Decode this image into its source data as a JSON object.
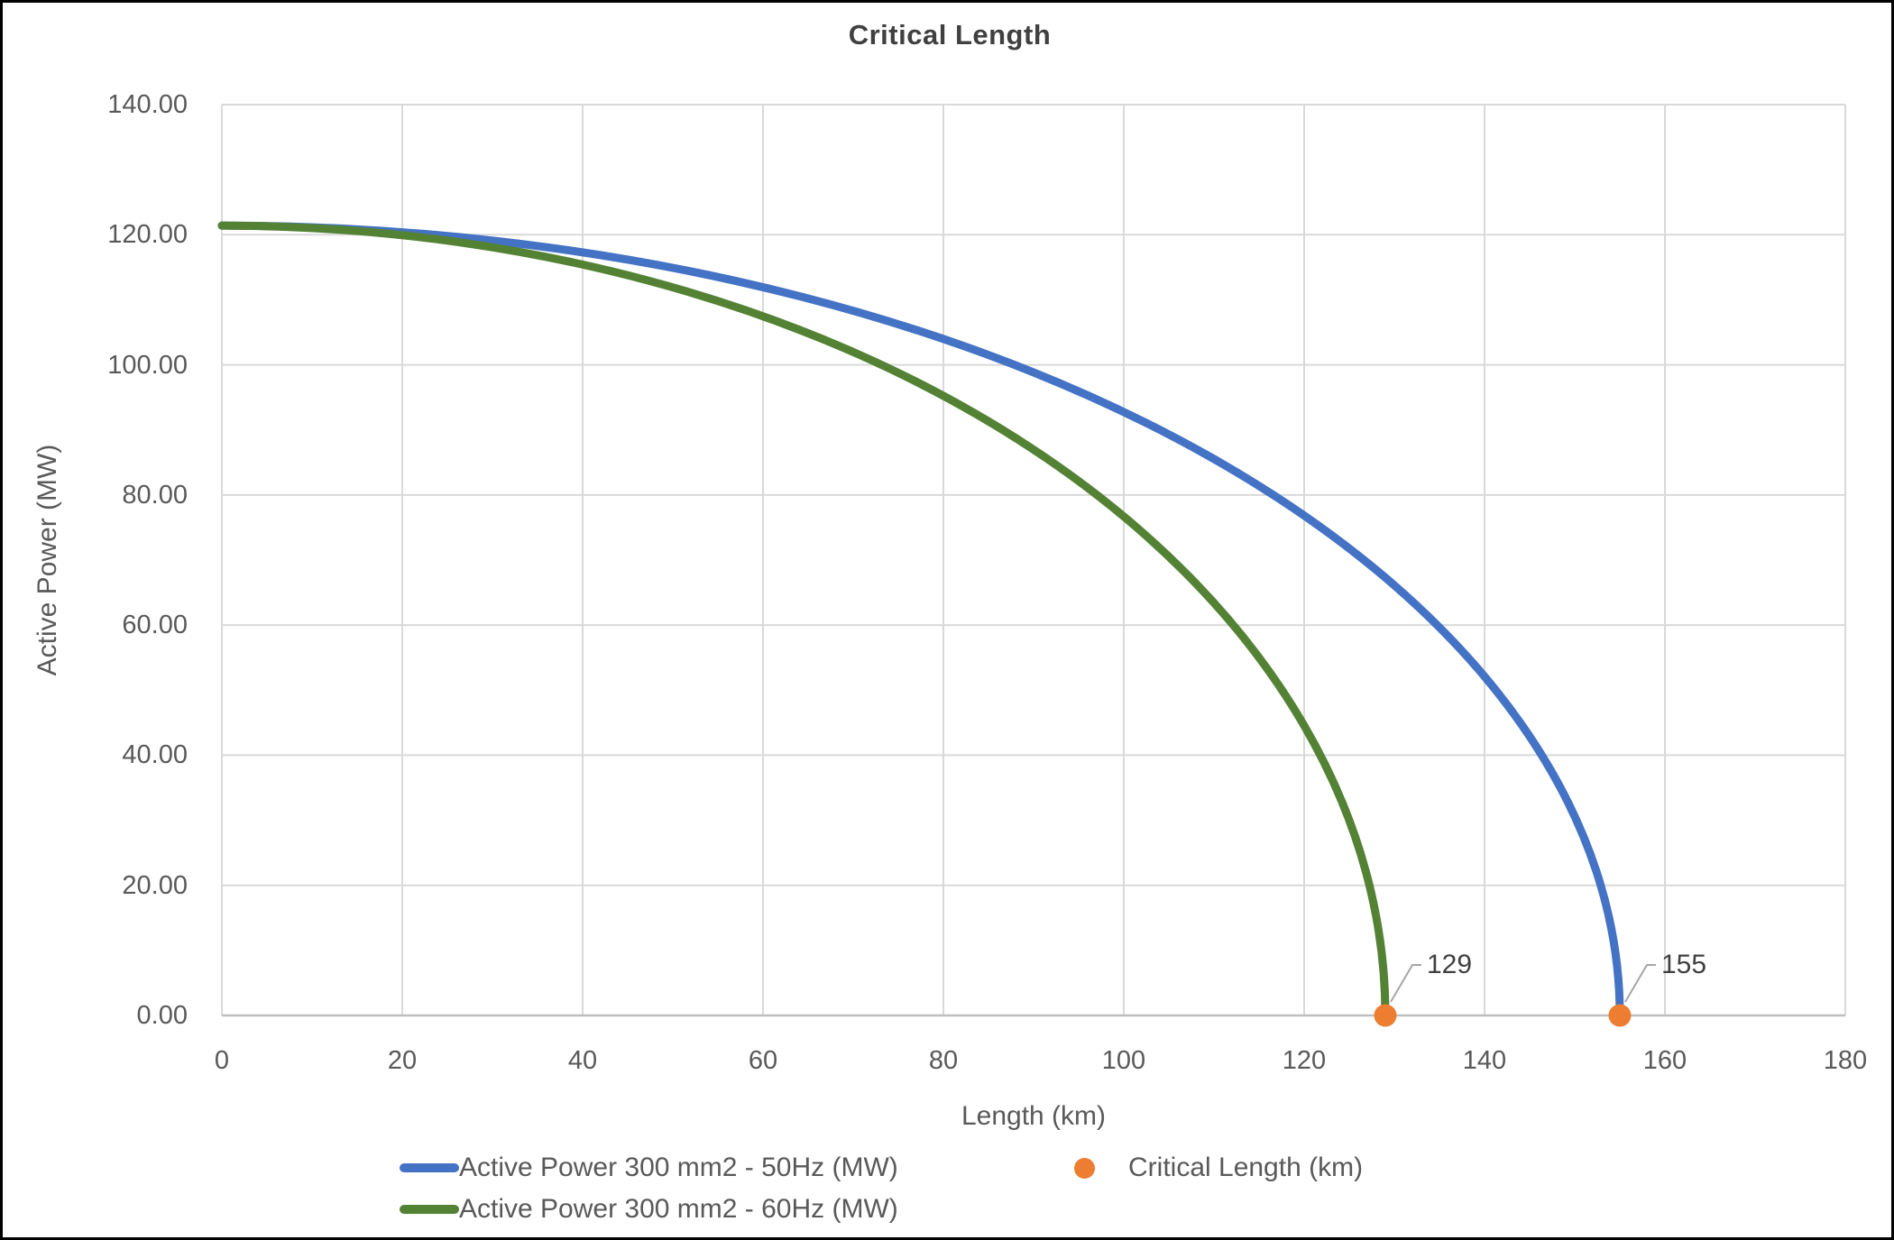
{
  "window": {
    "background": "#FFFFFF",
    "border_color": "#000000"
  },
  "styles": {
    "gridline_color": "#D9D9D9",
    "axis_line_color": "#BFBFBF",
    "tick_label_color": "#595959",
    "title_color": "#404040",
    "data_label_color": "#404040",
    "leader_line_color": "#A6A6A6"
  },
  "chart_data": {
    "type": "line",
    "title": "Critical Length",
    "xlabel": "Length (km)",
    "ylabel": "Active Power (MW)",
    "xlim": [
      0,
      180
    ],
    "ylim": [
      0,
      140
    ],
    "grid": "both",
    "legend_position": "bottom",
    "x_ticks": {
      "values": [
        0,
        20,
        40,
        60,
        80,
        100,
        120,
        140,
        160,
        180
      ],
      "labels": [
        "0",
        "20",
        "40",
        "60",
        "80",
        "100",
        "120",
        "140",
        "160",
        "180"
      ]
    },
    "y_ticks": {
      "values": [
        0,
        20,
        40,
        60,
        80,
        100,
        120,
        140
      ],
      "labels": [
        "0.00",
        "20.00",
        "40.00",
        "60.00",
        "80.00",
        "100.00",
        "120.00",
        "140.00"
      ]
    },
    "series": [
      {
        "name": "Active Power 300 mm2 - 50Hz (MW)",
        "color": "#4472C4",
        "curve": "quarter-ellipse",
        "p_max_mw": 121.4,
        "critical_length_km": 155,
        "x": [
          0,
          10,
          20,
          30,
          40,
          50,
          60,
          70,
          80,
          90,
          100,
          110,
          120,
          130,
          140,
          150,
          155
        ],
        "y": [
          121.4,
          121.1,
          120.4,
          119.1,
          117.3,
          114.9,
          111.9,
          108.3,
          104.0,
          98.8,
          92.8,
          85.5,
          76.8,
          66.1,
          52.1,
          30.6,
          0.0
        ]
      },
      {
        "name": "Active Power 300 mm2 - 60Hz (MW)",
        "color": "#548235",
        "curve": "quarter-ellipse",
        "p_max_mw": 121.4,
        "critical_length_km": 129,
        "x": [
          0,
          10,
          20,
          30,
          40,
          50,
          60,
          70,
          80,
          90,
          100,
          110,
          120,
          129
        ],
        "y": [
          121.4,
          121.0,
          119.9,
          118.1,
          115.4,
          111.9,
          107.5,
          102.0,
          95.2,
          87.0,
          76.7,
          63.4,
          44.6,
          0.0
        ]
      }
    ],
    "points_series": {
      "name": "Critical Length (km)",
      "color": "#ED7D31",
      "points": [
        {
          "x": 129,
          "y": 0,
          "label": "129"
        },
        {
          "x": 155,
          "y": 0,
          "label": "155"
        }
      ]
    }
  }
}
